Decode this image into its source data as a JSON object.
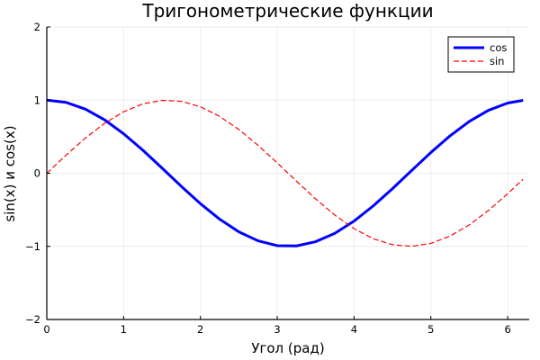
{
  "chart_data": {
    "type": "line",
    "title": "Тригонометрические функции",
    "xlabel": "Угол (рад)",
    "ylabel": "sin(x) и cos(x)",
    "xlim": [
      0,
      6.28
    ],
    "ylim": [
      -2,
      2
    ],
    "xticks": [
      0,
      1,
      2,
      3,
      4,
      5,
      6
    ],
    "yticks": [
      -2,
      -1,
      0,
      1,
      2
    ],
    "xtick_labels": [
      "0",
      "1",
      "2",
      "3",
      "4",
      "5",
      "6"
    ],
    "ytick_labels": [
      "−2",
      "−1",
      "0",
      "1",
      "2"
    ],
    "grid": true,
    "legend_position": "top-right",
    "series": [
      {
        "name": "cos",
        "color": "#0000ff",
        "style": "solid",
        "x": [
          0.0,
          0.25,
          0.5,
          0.75,
          1.0,
          1.25,
          1.5,
          1.75,
          2.0,
          2.25,
          2.5,
          2.75,
          3.0,
          3.25,
          3.5,
          3.75,
          4.0,
          4.25,
          4.5,
          4.75,
          5.0,
          5.25,
          5.5,
          5.75,
          6.0,
          6.2
        ],
        "y": [
          1.0,
          0.969,
          0.878,
          0.732,
          0.54,
          0.315,
          0.071,
          -0.178,
          -0.416,
          -0.628,
          -0.801,
          -0.924,
          -0.99,
          -0.994,
          -0.936,
          -0.821,
          -0.654,
          -0.446,
          -0.211,
          0.038,
          0.284,
          0.512,
          0.709,
          0.861,
          0.96,
          0.997
        ]
      },
      {
        "name": "sin",
        "color": "#ff0000",
        "style": "dashed",
        "x": [
          0.0,
          0.25,
          0.5,
          0.75,
          1.0,
          1.25,
          1.5,
          1.75,
          2.0,
          2.25,
          2.5,
          2.75,
          3.0,
          3.25,
          3.5,
          3.75,
          4.0,
          4.25,
          4.5,
          4.75,
          5.0,
          5.25,
          5.5,
          5.75,
          6.0,
          6.2
        ],
        "y": [
          0.0,
          0.247,
          0.479,
          0.682,
          0.841,
          0.949,
          0.997,
          0.984,
          0.909,
          0.778,
          0.598,
          0.382,
          0.141,
          -0.108,
          -0.351,
          -0.572,
          -0.757,
          -0.895,
          -0.978,
          -0.999,
          -0.959,
          -0.859,
          -0.706,
          -0.509,
          -0.279,
          -0.083
        ]
      }
    ]
  }
}
